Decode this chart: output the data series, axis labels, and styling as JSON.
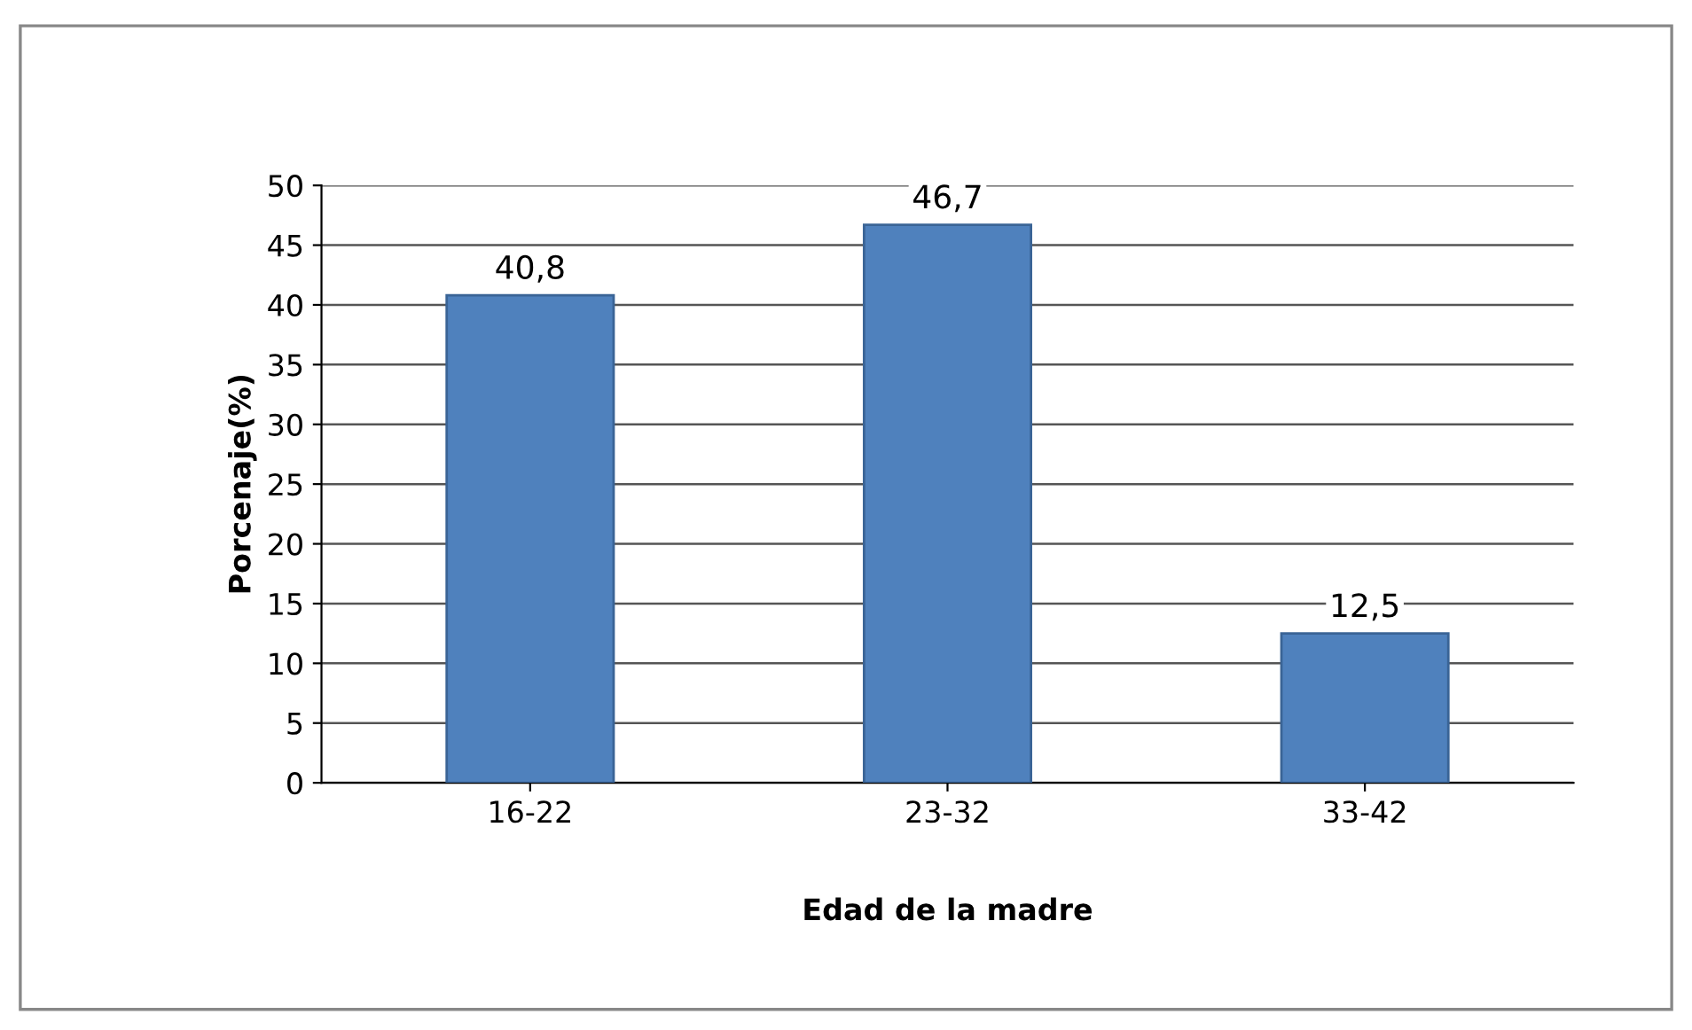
{
  "chart_data": {
    "type": "bar",
    "xlabel": "Edad de la madre",
    "ylabel": "Porcenaje(%)",
    "categories": [
      "16-22",
      "23-32",
      "33-42"
    ],
    "values": [
      40.8,
      46.7,
      12.5
    ],
    "color": "#4f81bd",
    "ylim": [
      0,
      50
    ],
    "yticks": [
      0,
      5,
      10,
      15,
      20,
      25,
      30,
      35,
      40,
      45,
      50
    ],
    "value_labels": [
      "40,8",
      "46,7",
      "12,5"
    ],
    "grid": "y",
    "legend": false
  }
}
